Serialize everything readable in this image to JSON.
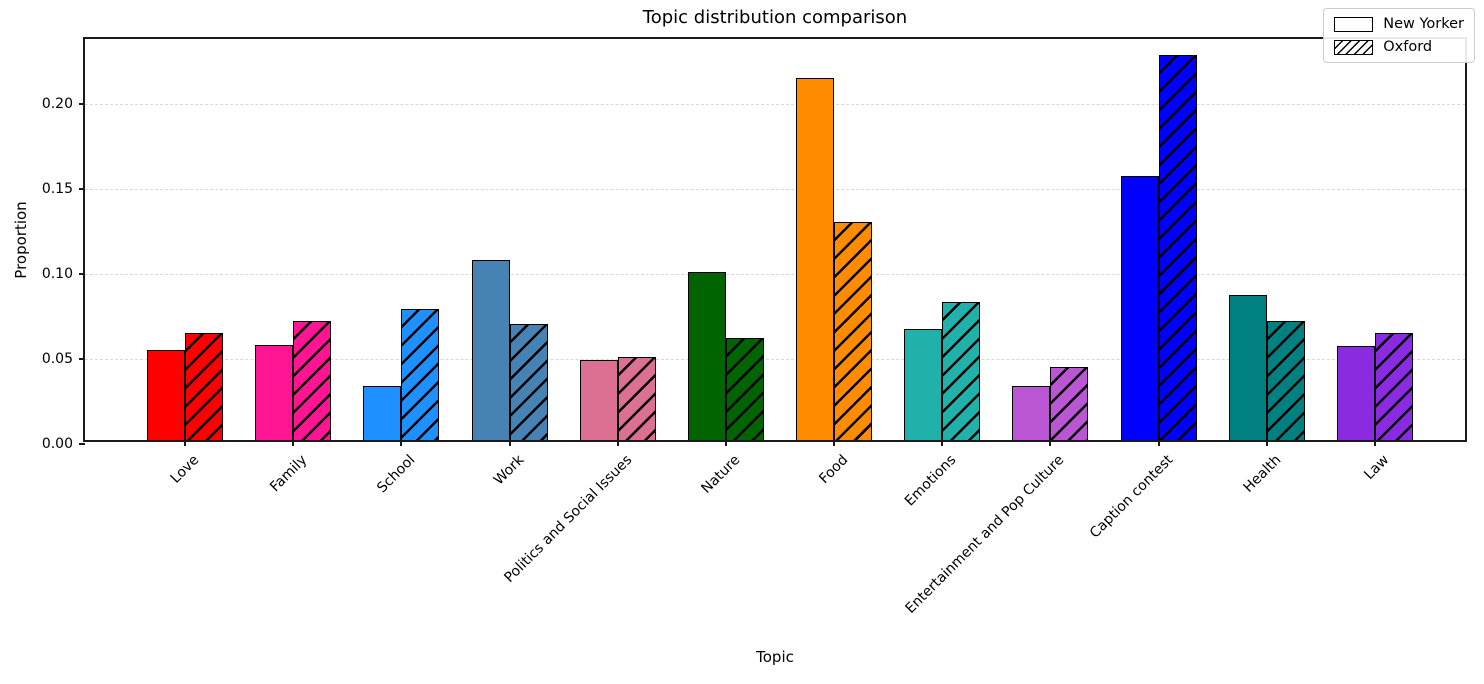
{
  "figure": {
    "background": "#ffffff",
    "title": "Topic distribution comparison",
    "xlabel": "Topic",
    "ylabel": "Proportion"
  },
  "chart_data": {
    "type": "bar",
    "title": "Topic distribution comparison",
    "xlabel": "Topic",
    "ylabel": "Proportion",
    "ylim": [
      0,
      0.238
    ],
    "yticks": [
      0.0,
      0.05,
      0.1,
      0.15,
      0.2
    ],
    "ytick_labels": [
      "0.00",
      "0.05",
      "0.10",
      "0.15",
      "0.20"
    ],
    "grid": "horizontal-dashed",
    "gridline_color": "#d9d9d9",
    "bar_edge_color": "#000000",
    "legend_position": "upper-right",
    "x_tick_rotation_deg": 45,
    "categories": [
      "Love",
      "Family",
      "School",
      "Work",
      "Politics and Social Issues",
      "Nature",
      "Food",
      "Emotions",
      "Entertainment and Pop Culture",
      "Caption contest",
      "Health",
      "Law"
    ],
    "bar_colors": [
      "#FF0000",
      "#FF1493",
      "#1E90FF",
      "#4682B4",
      "#DB7093",
      "#006400",
      "#FF8C00",
      "#20B2AA",
      "#BA55D3",
      "#0000FF",
      "#008080",
      "#8A2BE2"
    ],
    "series": [
      {
        "name": "New Yorker",
        "hatch": "none",
        "values": [
          0.053,
          0.056,
          0.032,
          0.106,
          0.047,
          0.099,
          0.213,
          0.065,
          0.032,
          0.155,
          0.085,
          0.055
        ]
      },
      {
        "name": "Oxford",
        "hatch": "//",
        "values": [
          0.063,
          0.07,
          0.077,
          0.068,
          0.049,
          0.06,
          0.128,
          0.081,
          0.043,
          0.226,
          0.07,
          0.063
        ]
      }
    ]
  }
}
